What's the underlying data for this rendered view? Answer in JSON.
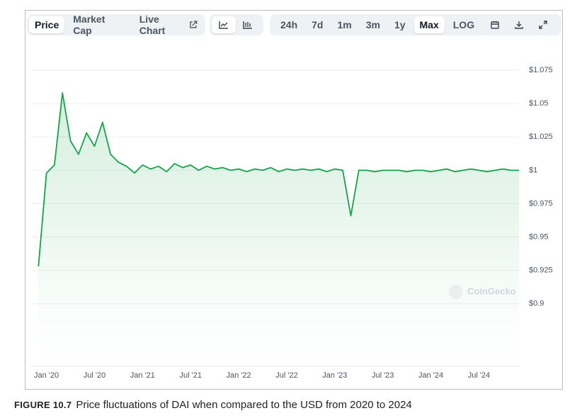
{
  "toolbar": {
    "tabs": [
      "Price",
      "Market Cap",
      "Live Chart"
    ],
    "ranges": [
      "24h",
      "7d",
      "1m",
      "3m",
      "1y",
      "Max",
      "LOG"
    ]
  },
  "watermark": "CoinGecko",
  "caption": {
    "label": "FIGURE 10.7",
    "text": "Price fluctuations of DAI when compared to the USD from 2020 to 2024"
  },
  "chart_data": {
    "type": "line",
    "color": "#16a34a",
    "x": [
      "2019-12",
      "2020-01",
      "2020-02",
      "2020-03",
      "2020-04",
      "2020-05",
      "2020-06",
      "2020-07",
      "2020-08",
      "2020-09",
      "2020-10",
      "2020-11",
      "2020-12",
      "2021-01",
      "2021-02",
      "2021-03",
      "2021-04",
      "2021-05",
      "2021-06",
      "2021-07",
      "2021-08",
      "2021-09",
      "2021-10",
      "2021-11",
      "2021-12",
      "2022-01",
      "2022-02",
      "2022-03",
      "2022-04",
      "2022-05",
      "2022-06",
      "2022-07",
      "2022-08",
      "2022-09",
      "2022-10",
      "2022-11",
      "2022-12",
      "2023-01",
      "2023-02",
      "2023-03",
      "2023-04",
      "2023-05",
      "2023-06",
      "2023-07",
      "2023-08",
      "2023-09",
      "2023-10",
      "2023-11",
      "2023-12",
      "2024-01",
      "2024-02",
      "2024-03",
      "2024-04",
      "2024-05",
      "2024-06",
      "2024-07",
      "2024-08",
      "2024-09",
      "2024-10",
      "2024-11",
      "2024-12"
    ],
    "values": [
      0.928,
      0.998,
      1.004,
      1.058,
      1.022,
      1.012,
      1.028,
      1.018,
      1.036,
      1.012,
      1.006,
      1.003,
      0.998,
      1.004,
      1.001,
      1.003,
      0.999,
      1.005,
      1.002,
      1.004,
      1.0,
      1.003,
      1.001,
      1.002,
      1.0,
      1.001,
      0.999,
      1.001,
      1.0,
      1.002,
      0.999,
      1.001,
      1.0,
      1.001,
      1.0,
      1.001,
      0.999,
      1.001,
      1.0,
      0.966,
      1.0,
      1.0,
      0.999,
      1.0,
      1.0,
      1.0,
      0.999,
      1.0,
      1.0,
      0.999,
      1.0,
      1.001,
      0.999,
      1.0,
      1.001,
      1.0,
      0.999,
      1.0,
      1.001,
      1.0,
      1.0
    ],
    "xlim": [
      "2019-11",
      "2024-12"
    ],
    "xticks": [
      {
        "value": "2020-01",
        "label": "Jan '20"
      },
      {
        "value": "2020-07",
        "label": "Jul '20"
      },
      {
        "value": "2021-01",
        "label": "Jan '21"
      },
      {
        "value": "2021-07",
        "label": "Jul '21"
      },
      {
        "value": "2022-01",
        "label": "Jan '22"
      },
      {
        "value": "2022-07",
        "label": "Jul '22"
      },
      {
        "value": "2023-01",
        "label": "Jan '23"
      },
      {
        "value": "2023-07",
        "label": "Jul '23"
      },
      {
        "value": "2024-01",
        "label": "Jan '24"
      },
      {
        "value": "2024-07",
        "label": "Jul '24"
      }
    ],
    "ylim": [
      0.85,
      1.1
    ],
    "yticks": [
      {
        "value": 0.9,
        "label": "$0.9"
      },
      {
        "value": 0.925,
        "label": "$0.925"
      },
      {
        "value": 0.95,
        "label": "$0.95"
      },
      {
        "value": 0.975,
        "label": "$0.975"
      },
      {
        "value": 1,
        "label": "$1"
      },
      {
        "value": 1.025,
        "label": "$1.025"
      },
      {
        "value": 1.05,
        "label": "$1.05"
      },
      {
        "value": 1.075,
        "label": "$1.075"
      }
    ],
    "grid": true
  }
}
